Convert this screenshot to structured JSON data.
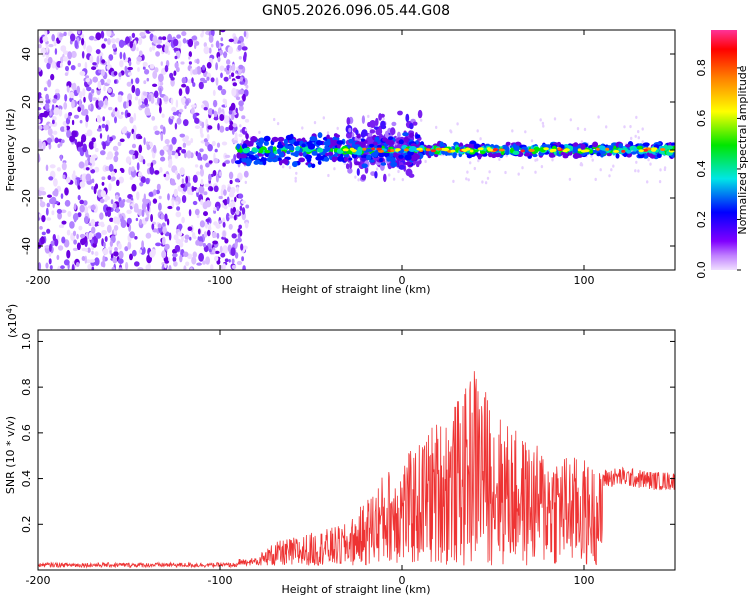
{
  "chart_data": [
    {
      "type": "heatmap",
      "title": "GN05.2026.096.05.44.G08",
      "xlabel": "Height of straight line (km)",
      "ylabel": "Frequency (Hz)",
      "xlim": [
        -200,
        150
      ],
      "ylim": [
        -50,
        50
      ],
      "xticks": [
        -200,
        -100,
        0,
        100
      ],
      "yticks": [
        -40,
        -20,
        0,
        20,
        40
      ],
      "colorbar": {
        "label": "Normalized spectral amplitude",
        "range": [
          0.0,
          0.95
        ],
        "ticks": [
          0.0,
          0.2,
          0.4,
          0.6,
          0.8
        ],
        "tick_labels": [
          "0.0",
          "0.2",
          "0.4",
          "0.6",
          "0.8"
        ],
        "colors": [
          "#e6ccff",
          "#7a00e6",
          "#0000ff",
          "#00e6e6",
          "#00e600",
          "#ffff00",
          "#ff8000",
          "#ff0000",
          "#ff3399"
        ]
      },
      "regions": [
        {
          "name": "scattered noise",
          "x_range": [
            -200,
            -85
          ],
          "y_range": [
            -50,
            50
          ],
          "amplitude": 0.05
        },
        {
          "name": "main band",
          "x_range": [
            -90,
            150
          ],
          "center_freq": 0,
          "amplitude_max": 0.9
        },
        {
          "name": "broad spread",
          "x_range": [
            -30,
            10
          ],
          "y_range": [
            -20,
            25
          ],
          "amplitude": 0.2
        }
      ]
    },
    {
      "type": "line",
      "xlabel": "Height of straight line (km)",
      "ylabel": "SNR (10 * v/v)",
      "y_scale_label": "(x10",
      "y_scale_exp": "4",
      "y_scale_close": ")",
      "xlim": [
        -200,
        150
      ],
      "ylim": [
        0,
        1.05
      ],
      "xticks": [
        -200,
        -100,
        0,
        100
      ],
      "yticks": [
        0.2,
        0.4,
        0.6,
        0.8,
        1.0
      ],
      "color": "#ee3333",
      "envelope": {
        "x": [
          -200,
          -120,
          -90,
          -80,
          -70,
          -50,
          -30,
          -20,
          -10,
          0,
          10,
          15,
          25,
          35,
          40,
          50,
          60,
          70,
          80,
          90,
          100,
          105,
          110,
          120,
          130,
          140,
          150
        ],
        "y": [
          0.02,
          0.02,
          0.03,
          0.06,
          0.12,
          0.16,
          0.2,
          0.3,
          0.42,
          0.48,
          0.55,
          0.62,
          0.68,
          0.78,
          0.9,
          0.7,
          0.62,
          0.55,
          0.52,
          0.5,
          0.48,
          0.45,
          0.42,
          0.43,
          0.42,
          0.41,
          0.41
        ]
      }
    }
  ]
}
